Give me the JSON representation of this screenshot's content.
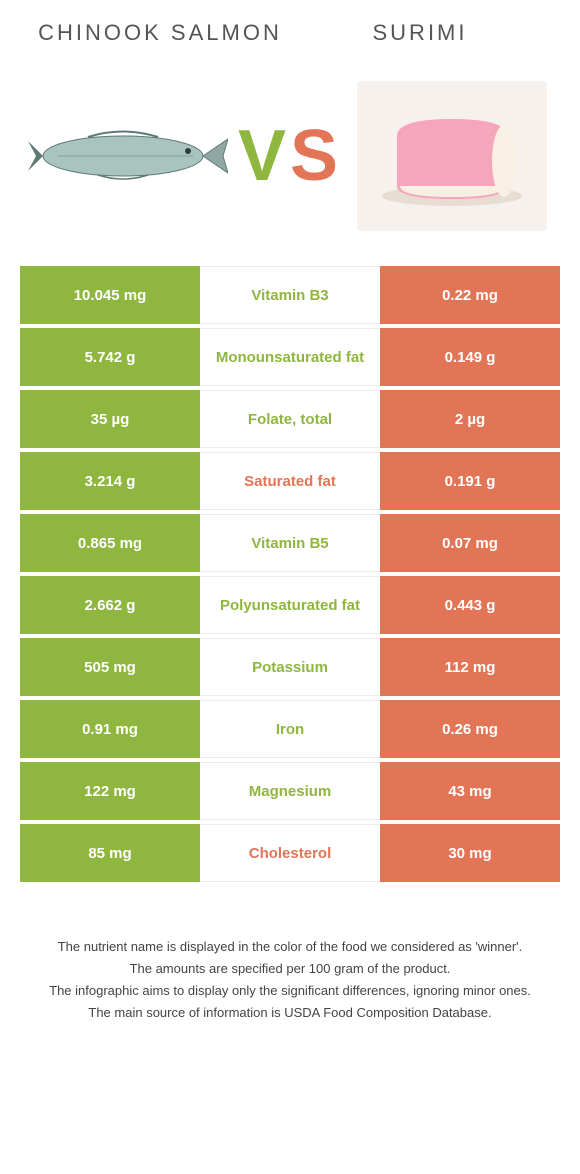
{
  "colors": {
    "left": "#8fb63f",
    "right": "#e37557",
    "background": "#ffffff",
    "text": "#333333",
    "surimi_pink": "#f5a5bc",
    "surimi_cream": "#f7f0e3",
    "salmon_body": "#a9c4bf",
    "salmon_dark": "#5e7a77"
  },
  "header": {
    "left": "Chinook salmon",
    "right": "Surimi",
    "vs_v": "V",
    "vs_s": "S"
  },
  "rows": [
    {
      "left": "10.045 mg",
      "label": "Vitamin B3",
      "right": "0.22 mg",
      "winner": "left"
    },
    {
      "left": "5.742 g",
      "label": "Monounsaturated fat",
      "right": "0.149 g",
      "winner": "left"
    },
    {
      "left": "35 µg",
      "label": "Folate, total",
      "right": "2 µg",
      "winner": "left"
    },
    {
      "left": "3.214 g",
      "label": "Saturated fat",
      "right": "0.191 g",
      "winner": "right"
    },
    {
      "left": "0.865 mg",
      "label": "Vitamin B5",
      "right": "0.07 mg",
      "winner": "left"
    },
    {
      "left": "2.662 g",
      "label": "Polyunsaturated fat",
      "right": "0.443 g",
      "winner": "left"
    },
    {
      "left": "505 mg",
      "label": "Potassium",
      "right": "112 mg",
      "winner": "left"
    },
    {
      "left": "0.91 mg",
      "label": "Iron",
      "right": "0.26 mg",
      "winner": "left"
    },
    {
      "left": "122 mg",
      "label": "Magnesium",
      "right": "43 mg",
      "winner": "left"
    },
    {
      "left": "85 mg",
      "label": "Cholesterol",
      "right": "30 mg",
      "winner": "right"
    }
  ],
  "footer": {
    "line1": "The nutrient name is displayed in the color of the food we considered as 'winner'.",
    "line2": "The amounts are specified per 100 gram of the product.",
    "line3": "The infographic aims to display only the significant differences, ignoring minor ones.",
    "line4": "The main source of information is USDA Food Composition Database."
  }
}
